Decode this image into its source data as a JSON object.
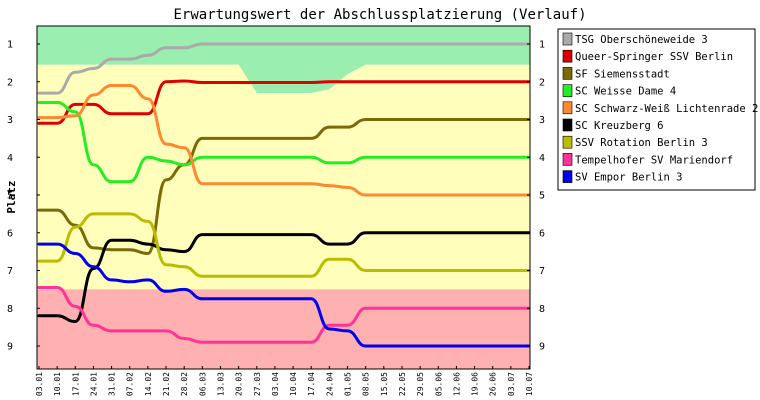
{
  "chart_data": {
    "type": "line",
    "title": "Erwartungswert der Abschlussplatzierung (Verlauf)",
    "ylabel": "Platz",
    "xlabel": "",
    "ylim": [
      1,
      9
    ],
    "y_inverted": true,
    "y_ticks": [
      "1",
      "2",
      "3",
      "4",
      "5",
      "6",
      "7",
      "8",
      "9"
    ],
    "x": [
      "03.01",
      "10.01",
      "17.01",
      "24.01",
      "31.01",
      "07.02",
      "14.02",
      "21.02",
      "28.02",
      "06.03",
      "13.03",
      "20.03",
      "27.03",
      "03.04",
      "10.04",
      "17.04",
      "24.04",
      "01.05",
      "08.05",
      "15.05",
      "22.05",
      "29.05",
      "05.06",
      "12.06",
      "19.06",
      "26.06",
      "03.07",
      "10.07"
    ],
    "legend_position": "right",
    "zones": [
      {
        "name": "promotion",
        "color": "#99eeb0",
        "upper": [
          1.55,
          1.55,
          1.55,
          1.55,
          1.55,
          1.55,
          1.55,
          1.55,
          1.55,
          1.55,
          1.55,
          1.55,
          2.3,
          2.3,
          2.3,
          2.3,
          2.2,
          1.8,
          1.55,
          1.55,
          1.55,
          1.55,
          1.55,
          1.55,
          1.55,
          1.55,
          1.55,
          1.55
        ]
      },
      {
        "name": "stay",
        "color": "#ffffbb",
        "upper": [
          7.5,
          7.5,
          7.5,
          7.5,
          7.5,
          7.5,
          7.5,
          7.5,
          7.5,
          7.5,
          7.5,
          7.5,
          7.5,
          7.5,
          7.5,
          7.5,
          7.5,
          7.5,
          7.5,
          7.5,
          7.5,
          7.5,
          7.5,
          7.5,
          7.5,
          7.5,
          7.5,
          7.5
        ]
      },
      {
        "name": "relegation",
        "color": "#ffb0b0"
      }
    ],
    "series": [
      {
        "name": "TSG Oberschöneweide 3",
        "color": "#aaaaaa",
        "values": [
          2.3,
          2.3,
          1.75,
          1.65,
          1.4,
          1.4,
          1.3,
          1.1,
          1.1,
          1.0,
          1.0,
          1.0,
          1.0,
          1.0,
          1.0,
          1.0,
          1.0,
          1.0,
          1.0,
          1.0,
          1.0,
          1.0,
          1.0,
          1.0,
          1.0,
          1.0,
          1.0,
          1.0
        ]
      },
      {
        "name": "Queer-Springer SSV Berlin",
        "color": "#dd0000",
        "values": [
          3.1,
          3.1,
          2.6,
          2.6,
          2.85,
          2.85,
          2.85,
          2.0,
          1.98,
          2.02,
          2.02,
          2.02,
          2.02,
          2.02,
          2.02,
          2.02,
          2.0,
          2.0,
          2.0,
          2.0,
          2.0,
          2.0,
          2.0,
          2.0,
          2.0,
          2.0,
          2.0,
          2.0
        ]
      },
      {
        "name": "SF Siemensstadt",
        "color": "#7a6a08",
        "values": [
          5.4,
          5.4,
          5.8,
          6.4,
          6.45,
          6.45,
          6.55,
          4.6,
          4.2,
          3.5,
          3.5,
          3.5,
          3.5,
          3.5,
          3.5,
          3.5,
          3.2,
          3.2,
          3.0,
          3.0,
          3.0,
          3.0,
          3.0,
          3.0,
          3.0,
          3.0,
          3.0,
          3.0
        ]
      },
      {
        "name": "SC Weisse Dame 4",
        "color": "#22ee22",
        "values": [
          2.55,
          2.55,
          2.8,
          4.2,
          4.65,
          4.65,
          4.0,
          4.1,
          4.2,
          4.0,
          4.0,
          4.0,
          4.0,
          4.0,
          4.0,
          4.0,
          4.15,
          4.15,
          4.0,
          4.0,
          4.0,
          4.0,
          4.0,
          4.0,
          4.0,
          4.0,
          4.0,
          4.0
        ]
      },
      {
        "name": "SC Schwarz-Weiß Lichtenrade 2",
        "color": "#ff8833",
        "values": [
          2.95,
          2.95,
          2.9,
          2.35,
          2.1,
          2.1,
          2.45,
          3.65,
          3.75,
          4.7,
          4.7,
          4.7,
          4.7,
          4.7,
          4.7,
          4.7,
          4.75,
          4.8,
          5.0,
          5.0,
          5.0,
          5.0,
          5.0,
          5.0,
          5.0,
          5.0,
          5.0,
          5.0
        ]
      },
      {
        "name": "SC Kreuzberg 6",
        "color": "#000000",
        "values": [
          8.2,
          8.2,
          8.35,
          6.95,
          6.2,
          6.2,
          6.3,
          6.45,
          6.5,
          6.05,
          6.05,
          6.05,
          6.05,
          6.05,
          6.05,
          6.05,
          6.3,
          6.3,
          6.0,
          6.0,
          6.0,
          6.0,
          6.0,
          6.0,
          6.0,
          6.0,
          6.0,
          6.0
        ]
      },
      {
        "name": "SSV Rotation Berlin 3",
        "color": "#bbbb00",
        "values": [
          6.75,
          6.75,
          5.85,
          5.5,
          5.5,
          5.5,
          5.7,
          6.85,
          6.9,
          7.15,
          7.15,
          7.15,
          7.15,
          7.15,
          7.15,
          7.15,
          6.7,
          6.7,
          7.0,
          7.0,
          7.0,
          7.0,
          7.0,
          7.0,
          7.0,
          7.0,
          7.0,
          7.0
        ]
      },
      {
        "name": "Tempelhofer SV Mariendorf",
        "color": "#ff3399",
        "values": [
          7.45,
          7.45,
          7.95,
          8.45,
          8.6,
          8.6,
          8.6,
          8.6,
          8.8,
          8.9,
          8.9,
          8.9,
          8.9,
          8.9,
          8.9,
          8.9,
          8.45,
          8.45,
          8.0,
          8.0,
          8.0,
          8.0,
          8.0,
          8.0,
          8.0,
          8.0,
          8.0,
          8.0
        ]
      },
      {
        "name": "SV Empor Berlin 3",
        "color": "#0000ee",
        "values": [
          6.3,
          6.3,
          6.55,
          6.9,
          7.25,
          7.3,
          7.25,
          7.55,
          7.5,
          7.75,
          7.75,
          7.75,
          7.75,
          7.75,
          7.75,
          7.75,
          8.55,
          8.6,
          9.0,
          9.0,
          9.0,
          9.0,
          9.0,
          9.0,
          9.0,
          9.0,
          9.0,
          9.0
        ]
      }
    ]
  }
}
